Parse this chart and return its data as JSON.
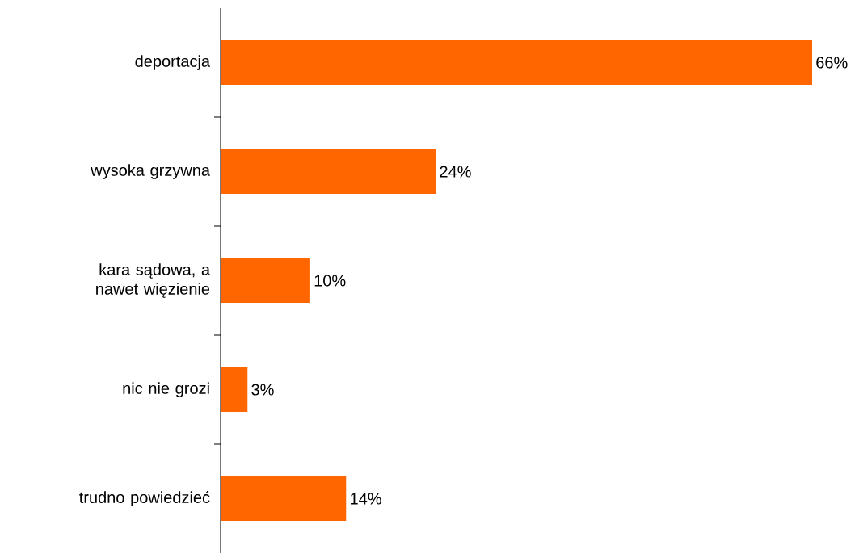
{
  "chart_data": {
    "type": "bar",
    "orientation": "horizontal",
    "categories": [
      "deportacja",
      "wysoka grzywna",
      "kara sądowa, a nawet więzienie",
      "nic nie grozi",
      "trudno powiedzieć"
    ],
    "values": [
      66,
      24,
      10,
      3,
      14
    ],
    "value_labels": [
      "66%",
      "24%",
      "10%",
      "3%",
      "14%"
    ],
    "color": "#ff6600"
  }
}
